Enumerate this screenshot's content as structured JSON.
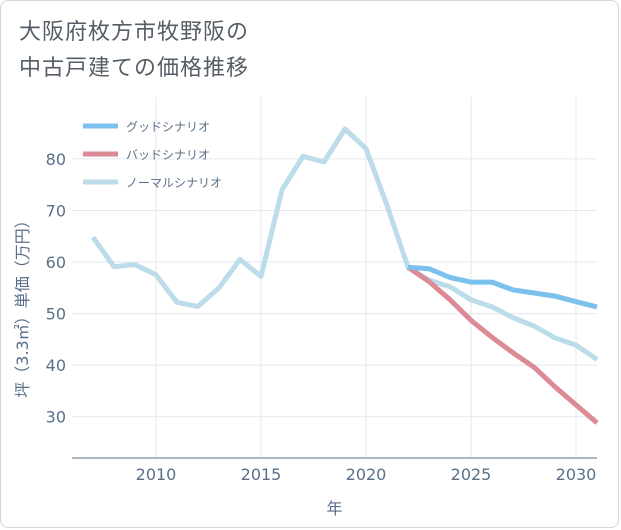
{
  "page": {
    "title_line1": "大阪府枚方市牧野阪の",
    "title_line2": "中古戸建ての価格推移"
  },
  "chart_data": {
    "type": "line",
    "title": "大阪府枚方市牧野阪の中古戸建ての価格推移",
    "xlabel": "年",
    "ylabel": "坪（3.3㎡）単価（万円）",
    "xlim": [
      2006,
      2031
    ],
    "ylim": [
      22,
      92
    ],
    "xticks": [
      2010,
      2015,
      2020,
      2025,
      2030
    ],
    "yticks": [
      30,
      40,
      50,
      60,
      70,
      80
    ],
    "grid": true,
    "legend_position": "top-left",
    "series": [
      {
        "name": "グッドシナリオ",
        "color": "#7cc0ee",
        "x": [
          2022,
          2023,
          2024,
          2025,
          2026,
          2027,
          2028,
          2029,
          2030,
          2031
        ],
        "y": [
          59.0,
          58.7,
          57.0,
          56.1,
          56.1,
          54.6,
          54.0,
          53.4,
          52.3,
          51.3
        ]
      },
      {
        "name": "バッドシナリオ",
        "color": "#dc8a95",
        "x": [
          2022,
          2023,
          2024,
          2025,
          2026,
          2027,
          2028,
          2029,
          2030,
          2031
        ],
        "y": [
          59.0,
          56.2,
          52.7,
          48.7,
          45.4,
          42.4,
          39.6,
          35.8,
          32.3,
          28.8
        ]
      },
      {
        "name": "ノーマルシナリオ",
        "color": "#bcdcea",
        "x": [
          2007,
          2008,
          2009,
          2010,
          2011,
          2012,
          2013,
          2014,
          2015,
          2016,
          2017,
          2018,
          2019,
          2020,
          2021,
          2022,
          2023,
          2024,
          2025,
          2026,
          2027,
          2028,
          2029,
          2030,
          2031
        ],
        "y": [
          64.8,
          59.1,
          59.5,
          57.5,
          52.2,
          51.4,
          55.0,
          60.5,
          57.2,
          74.0,
          80.5,
          79.4,
          85.8,
          82.0,
          71.0,
          59.0,
          56.5,
          55.2,
          52.7,
          51.3,
          49.2,
          47.6,
          45.3,
          43.9,
          41.1
        ]
      }
    ]
  }
}
